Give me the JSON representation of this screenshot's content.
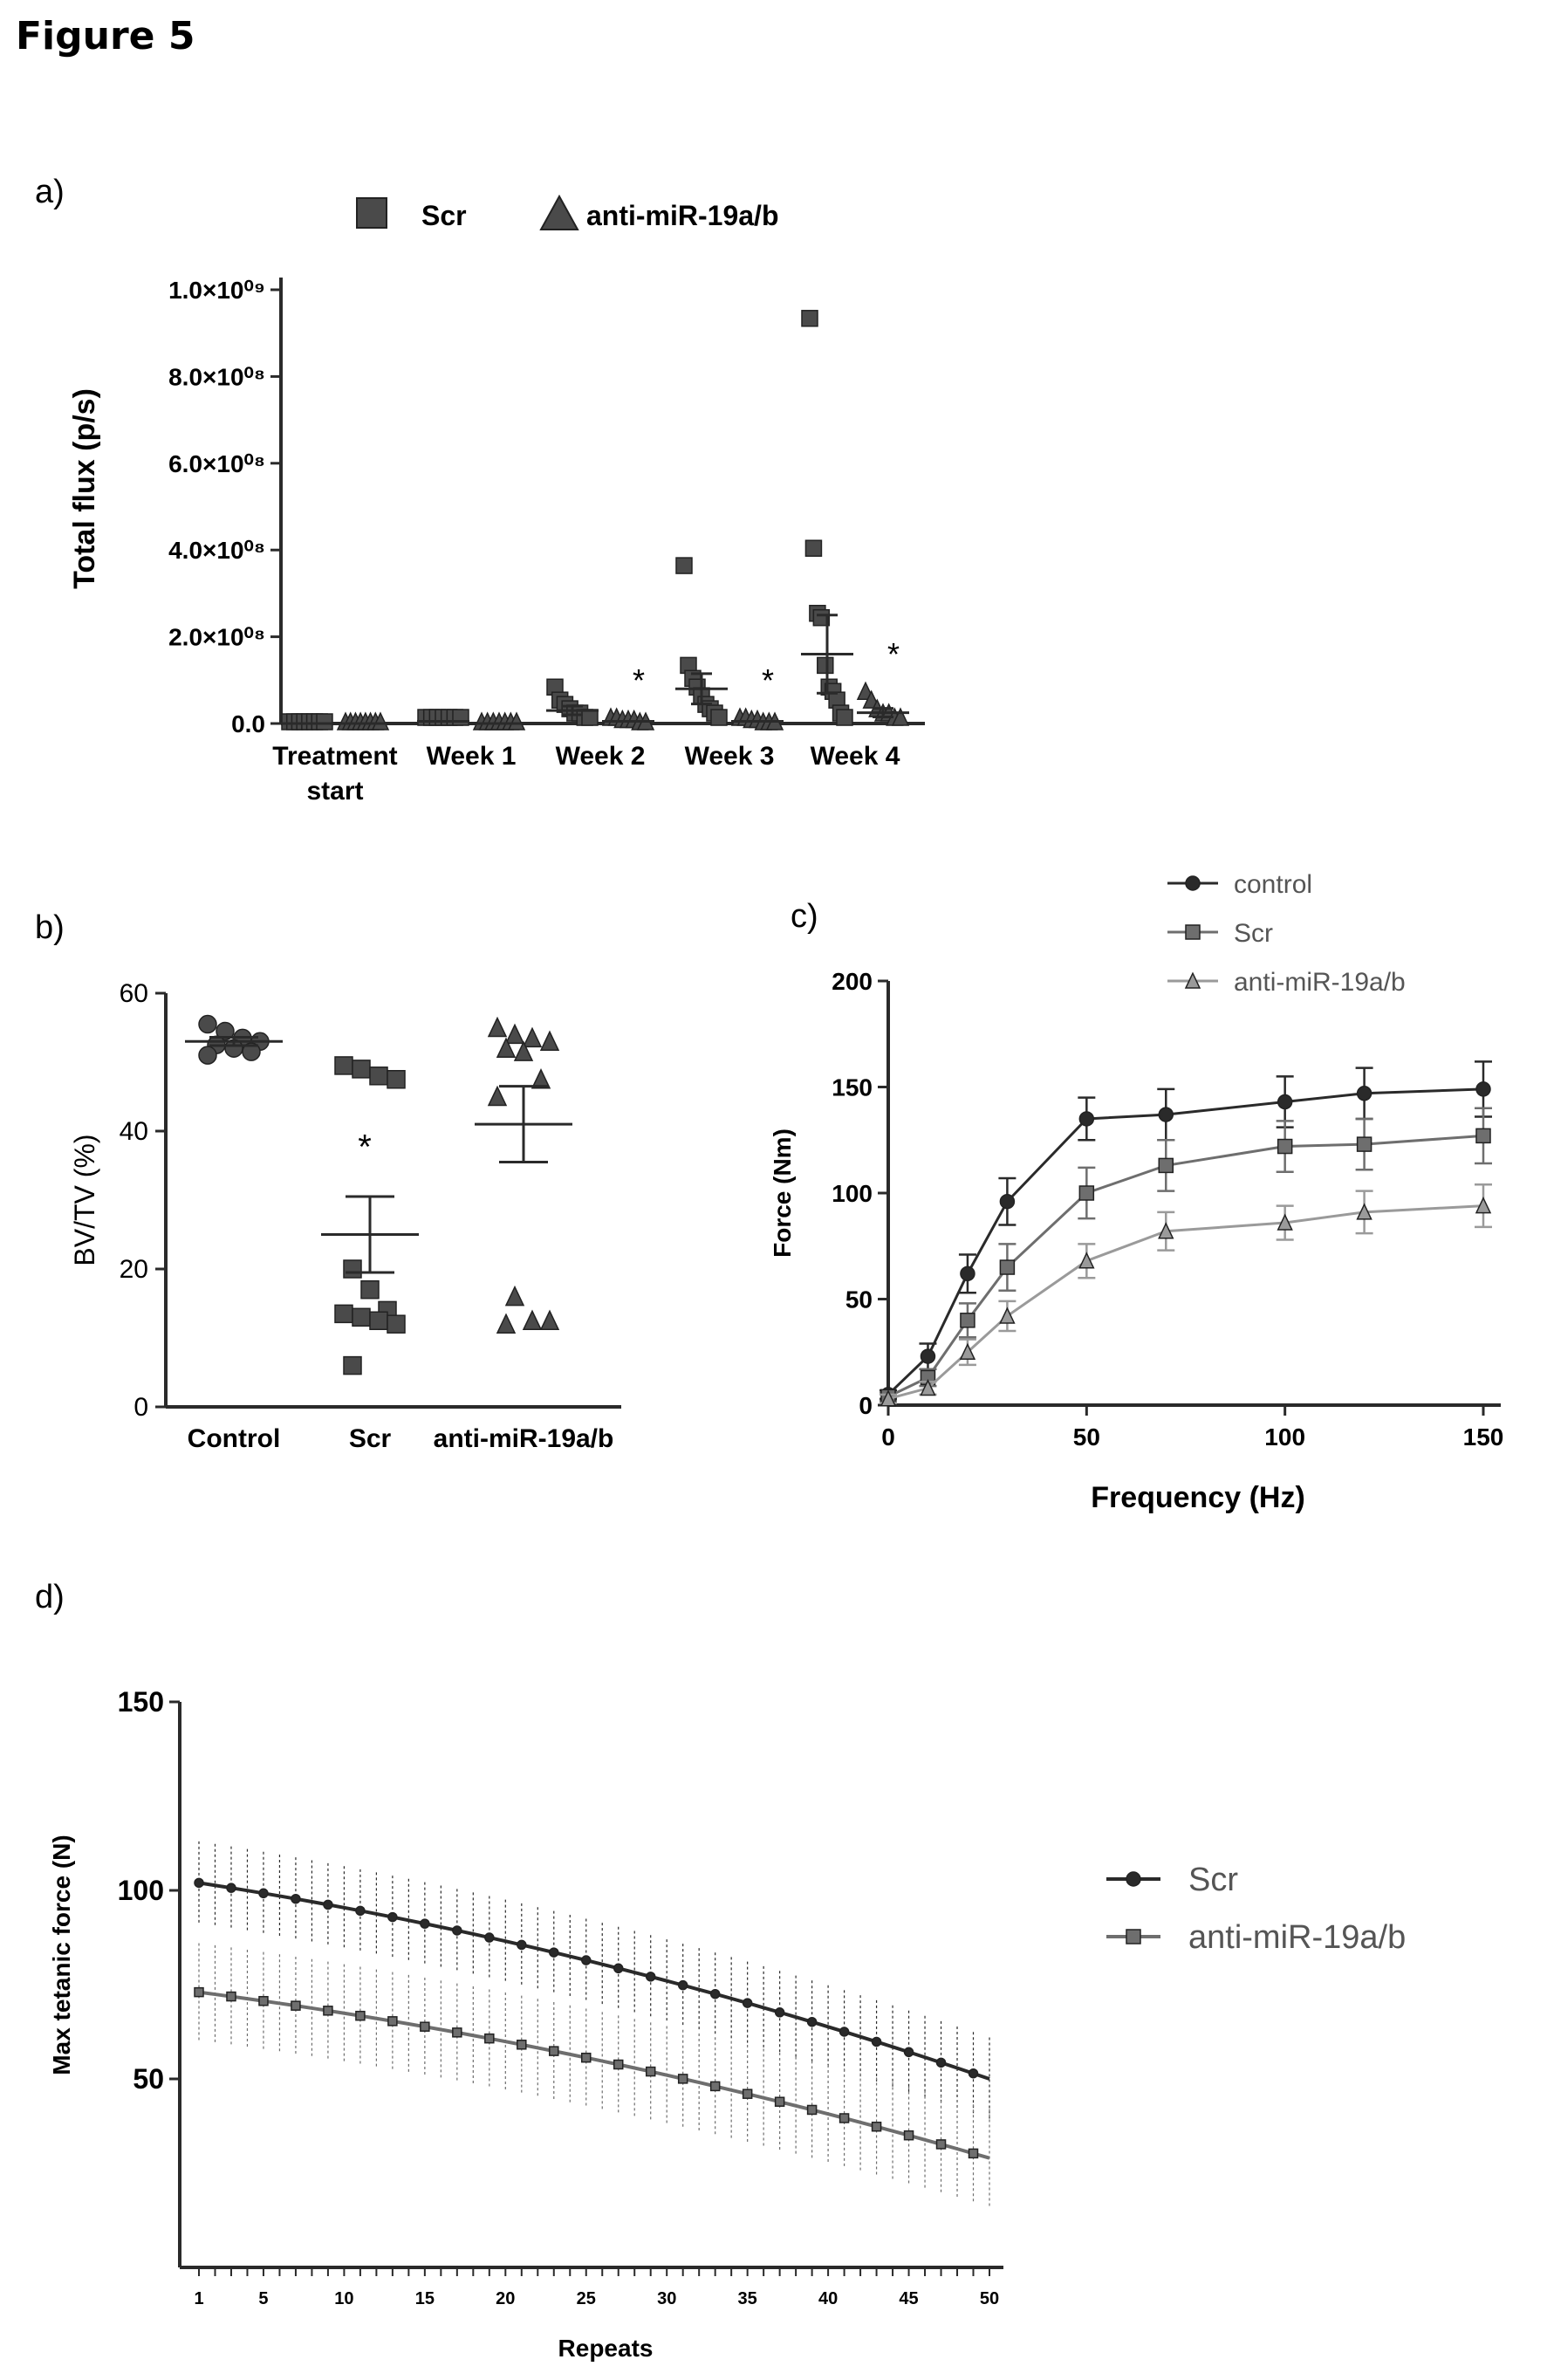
{
  "figure_title": "Figure 5",
  "colors": {
    "ink": "#2a2a2a",
    "grey": "#6e6e6e",
    "light": "#9a9a9a"
  },
  "chart_data": [
    {
      "panel": "a)",
      "type": "scatter",
      "title": "",
      "xlabel": "",
      "ylabel": "Total flux (p/s)",
      "categories": [
        "Treatment start",
        "Week 1",
        "Week 2",
        "Week 3",
        "Week 4"
      ],
      "yticks": [
        "0.0",
        "2.0×10⁰⁸",
        "4.0×10⁰⁸",
        "6.0×10⁰⁸",
        "8.0×10⁰⁸",
        "1.0×10⁰⁹"
      ],
      "ylim": [
        0,
        10
      ],
      "y_unit": "×10⁸ p/s",
      "legend_placement": "top",
      "significance_label": "*",
      "significance_categories": [
        "Week 2",
        "Week 3",
        "Week 4"
      ],
      "series": [
        {
          "name": "Scr",
          "marker": "square",
          "values": [
            [
              0,
              0,
              0,
              0,
              0,
              0,
              0,
              0
            ],
            [
              0.1,
              0.1,
              0.1,
              0.1,
              0.1,
              0.1,
              0.1
            ],
            [
              0.8,
              0.5,
              0.4,
              0.3,
              0.2,
              0.2,
              0.1,
              0.1
            ],
            [
              3.6,
              1.3,
              1.0,
              0.8,
              0.6,
              0.4,
              0.3,
              0.2,
              0.1
            ],
            [
              9.3,
              4.0,
              2.5,
              2.4,
              1.3,
              0.8,
              0.7,
              0.5,
              0.2,
              0.1
            ]
          ],
          "mean": [
            0,
            0.05,
            0.3,
            0.8,
            1.6
          ],
          "sem": [
            0,
            0.01,
            0.1,
            0.35,
            0.9
          ]
        },
        {
          "name": "anti-miR-19a/b",
          "marker": "triangle",
          "values": [
            [
              0,
              0,
              0,
              0,
              0,
              0,
              0,
              0
            ],
            [
              0,
              0,
              0,
              0,
              0,
              0,
              0
            ],
            [
              0.1,
              0.1,
              0.05,
              0.05,
              0.05,
              0,
              0
            ],
            [
              0.1,
              0.1,
              0.05,
              0.05,
              0,
              0,
              0
            ],
            [
              0.7,
              0.5,
              0.3,
              0.2,
              0.2,
              0.1,
              0.1
            ]
          ],
          "mean": [
            0,
            0,
            0.05,
            0.05,
            0.25
          ],
          "sem": [
            0,
            0,
            0.02,
            0.02,
            0.1
          ]
        }
      ]
    },
    {
      "panel": "b)",
      "type": "scatter",
      "title": "",
      "xlabel": "",
      "ylabel": "BV/TV (%)",
      "categories": [
        "Control",
        "Scr",
        "anti-miR-19a/b"
      ],
      "ylim": [
        0,
        60
      ],
      "yticks": [
        0,
        20,
        40,
        60
      ],
      "significance_label": "*",
      "significance_category": "Scr",
      "groups": [
        {
          "category": "Control",
          "marker": "circle",
          "values": [
            55.5,
            54.5,
            53.5,
            53,
            52.5,
            52,
            51.5,
            51
          ],
          "mean": 53,
          "sem": 0.6
        },
        {
          "category": "Scr",
          "marker": "square",
          "values": [
            49.5,
            49,
            48,
            47.5,
            20,
            17,
            14,
            13.5,
            13,
            12.5,
            12,
            6
          ],
          "mean": 25,
          "sem": 5.5
        },
        {
          "category": "anti-miR-19a/b",
          "marker": "triangle",
          "values": [
            55,
            54,
            53.5,
            53,
            52,
            51.5,
            47.5,
            45,
            16,
            12.5,
            12.5,
            12
          ],
          "mean": 41,
          "sem": 5.5
        }
      ]
    },
    {
      "panel": "c)",
      "type": "line",
      "title": "",
      "xlabel": "Frequency (Hz)",
      "ylabel": "Force (Nm)",
      "x": [
        0,
        10,
        20,
        30,
        50,
        70,
        100,
        120,
        150
      ],
      "xlim": [
        0,
        150
      ],
      "xticks": [
        0,
        50,
        100,
        150
      ],
      "ylim": [
        0,
        200
      ],
      "yticks": [
        0,
        50,
        100,
        150,
        200
      ],
      "legend_placement": "top",
      "series": [
        {
          "name": "control",
          "values": [
            5,
            23,
            62,
            96,
            135,
            137,
            143,
            147,
            149
          ],
          "err": [
            2,
            6,
            9,
            11,
            10,
            12,
            12,
            12,
            13
          ]
        },
        {
          "name": "Scr",
          "values": [
            4,
            13,
            40,
            65,
            100,
            113,
            122,
            123,
            127
          ],
          "err": [
            2,
            4,
            8,
            11,
            12,
            12,
            12,
            12,
            13
          ]
        },
        {
          "name": "anti-miR-19a/b",
          "values": [
            3,
            8,
            25,
            42,
            68,
            82,
            86,
            91,
            94
          ],
          "err": [
            2,
            3,
            6,
            7,
            8,
            9,
            8,
            10,
            10
          ]
        }
      ]
    },
    {
      "panel": "d)",
      "type": "line",
      "title": "",
      "xlabel": "Repeats",
      "ylabel": "Max tetanic force (N)",
      "xlim": [
        1,
        50
      ],
      "xticks": [
        1,
        5,
        10,
        15,
        20,
        25,
        30,
        35,
        40,
        45,
        50
      ],
      "ylim": [
        0,
        150
      ],
      "yticks": [
        50,
        100,
        150
      ],
      "legend_placement": "right",
      "series": [
        {
          "name": "Scr",
          "start": 102,
          "end": 50,
          "err": 11
        },
        {
          "name": "anti-miR-19a/b",
          "start": 73,
          "end": 29,
          "err": 13
        }
      ]
    }
  ]
}
